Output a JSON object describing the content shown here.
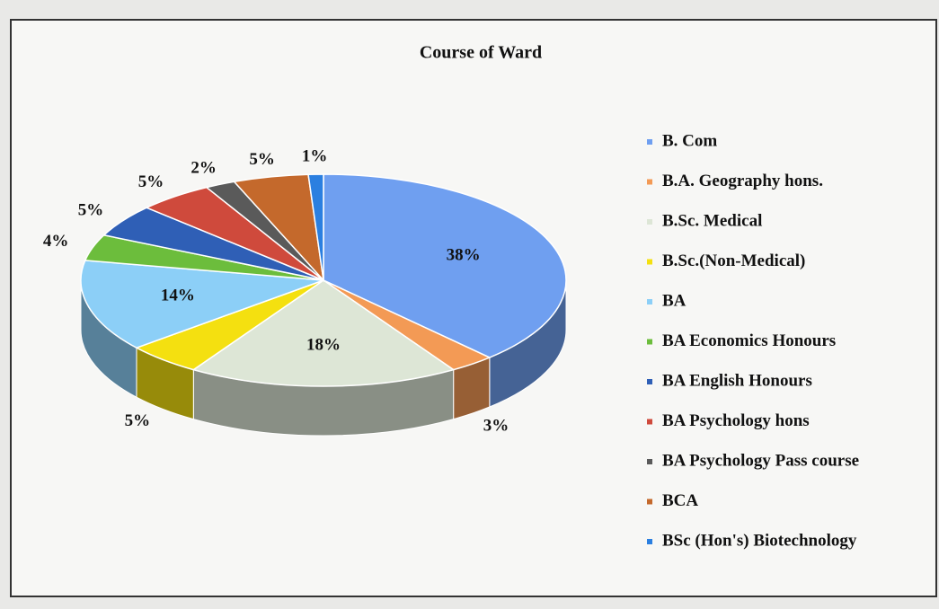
{
  "chart_data": {
    "type": "pie",
    "title": "Course of Ward",
    "categories": [
      "B. Com",
      "B.A. Geography hons.",
      "B.Sc. Medical",
      "B.Sc.(Non-Medical)",
      "BA",
      "BA Economics Honours",
      "BA English Honours",
      "BA Psychology hons",
      "BA Psychology Pass course",
      "BCA",
      "BSc (Hon's) Biotechnology"
    ],
    "values": [
      38,
      3,
      18,
      5,
      14,
      4,
      5,
      5,
      2,
      5,
      1
    ],
    "value_labels": [
      "38%",
      "3%",
      "18%",
      "5%",
      "14%",
      "4%",
      "5%",
      "5%",
      "2%",
      "5%",
      "1%"
    ],
    "colors": [
      "#6f9ff0",
      "#f39a55",
      "#dde6d6",
      "#f4e010",
      "#8ccff7",
      "#6cbd3c",
      "#2f5fb6",
      "#cf4a3c",
      "#5a5a5a",
      "#c4692c",
      "#2b7fe0"
    ],
    "legend": "right"
  }
}
